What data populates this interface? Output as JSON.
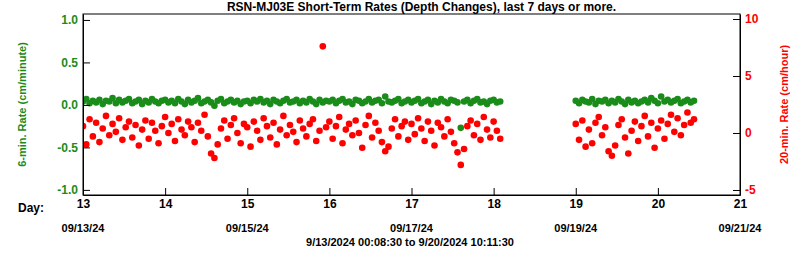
{
  "chart_data": {
    "type": "scatter",
    "title": "RSN-MJ03E Short-Term Rates (Depth Changes), last 7 days or more.",
    "ylabel": "6-min. Rate (cm/minute)",
    "y2label": "20-min. Rate (cm/hour)",
    "xlabel": "Day:",
    "footer": "9/13/2024 00:08:30 to  9/20/2024 10:11:30",
    "xlim": [
      13,
      21
    ],
    "xticks": [
      13,
      14,
      15,
      16,
      17,
      18,
      19,
      20,
      21
    ],
    "date_ticks": [
      {
        "value": 13,
        "label": "09/13/24"
      },
      {
        "value": 15,
        "label": "09/15/24"
      },
      {
        "value": 17,
        "label": "09/17/24"
      },
      {
        "value": 19,
        "label": "09/19/24"
      },
      {
        "value": 21,
        "label": "09/21/24"
      }
    ],
    "ylim": [
      -1.06,
      1.07
    ],
    "yticks": [
      {
        "value": -1,
        "label": "-1.0"
      },
      {
        "value": -0.5,
        "label": "-0.5"
      },
      {
        "value": 0,
        "label": "0.0"
      },
      {
        "value": 0.5,
        "label": "0.5"
      },
      {
        "value": 1,
        "label": "1.0"
      }
    ],
    "y2lim": [
      -5.44,
      10.44
    ],
    "y2ticks": [
      -5,
      0,
      5,
      10
    ],
    "x": [
      13,
      13.04,
      13.08,
      13.12,
      13.16,
      13.2,
      13.24,
      13.28,
      13.32,
      13.36,
      13.4,
      13.44,
      13.48,
      13.52,
      13.56,
      13.6,
      13.64,
      13.68,
      13.72,
      13.76,
      13.8,
      13.84,
      13.88,
      13.92,
      13.96,
      14,
      14.04,
      14.08,
      14.12,
      14.16,
      14.2,
      14.24,
      14.28,
      14.32,
      14.36,
      14.4,
      14.44,
      14.48,
      14.52,
      14.56,
      14.6,
      14.64,
      14.68,
      14.72,
      14.76,
      14.8,
      14.84,
      14.88,
      14.92,
      14.96,
      15,
      15.04,
      15.08,
      15.12,
      15.16,
      15.2,
      15.24,
      15.28,
      15.32,
      15.36,
      15.4,
      15.44,
      15.48,
      15.52,
      15.56,
      15.6,
      15.64,
      15.68,
      15.72,
      15.76,
      15.8,
      15.84,
      15.88,
      15.92,
      15.96,
      16,
      16.04,
      16.08,
      16.12,
      16.16,
      16.2,
      16.24,
      16.28,
      16.32,
      16.36,
      16.4,
      16.44,
      16.48,
      16.52,
      16.56,
      16.6,
      16.64,
      16.68,
      16.72,
      16.76,
      16.8,
      16.84,
      16.88,
      16.92,
      16.96,
      17,
      17.04,
      17.08,
      17.12,
      17.16,
      17.2,
      17.24,
      17.28,
      17.32,
      17.36,
      17.4,
      17.44,
      17.48,
      17.52,
      17.56,
      17.6,
      17.64,
      17.68,
      17.72,
      17.76,
      17.8,
      17.84,
      17.88,
      17.92,
      17.96,
      18,
      18.04,
      18.08,
      19,
      19.04,
      19.08,
      19.12,
      19.16,
      19.2,
      19.24,
      19.28,
      19.32,
      19.36,
      19.4,
      19.44,
      19.48,
      19.52,
      19.56,
      19.6,
      19.64,
      19.68,
      19.72,
      19.76,
      19.8,
      19.84,
      19.88,
      19.92,
      19.96,
      20,
      20.04,
      20.08,
      20.12,
      20.16,
      20.2,
      20.24,
      20.28,
      20.32,
      20.36,
      20.4,
      20.44
    ],
    "series": [
      {
        "color": "#1a8c1a",
        "marker": "circle",
        "values": [
          0.04,
          0.07,
          0.02,
          0.05,
          0.03,
          0.06,
          0.01,
          0.05,
          0.04,
          0.08,
          0.02,
          0.06,
          0.03,
          0.05,
          0.07,
          0.02,
          0.04,
          0.06,
          0.01,
          0.05,
          0.03,
          0.07,
          0.04,
          0.02,
          0.05,
          0.06,
          0.03,
          0.05,
          0.02,
          0.07,
          0.04,
          0.01,
          0.06,
          0.03,
          0.05,
          0.08,
          0.02,
          0.04,
          0.06,
          0.03,
          -0.01,
          0.05,
          0.07,
          0.02,
          0.04,
          0.06,
          0.03,
          0.05,
          0.01,
          0.04,
          0.05,
          0.02,
          0.06,
          0.04,
          0.07,
          0.03,
          0.05,
          0.01,
          0.06,
          0.04,
          0.02,
          0.05,
          0.07,
          0.03,
          0.04,
          0.06,
          0.02,
          0.05,
          0.03,
          0.07,
          0.04,
          0.01,
          0.06,
          0.03,
          0.05,
          0.04,
          0.06,
          0.02,
          0.05,
          0.07,
          0.03,
          0.04,
          0.01,
          0.06,
          0.05,
          0.02,
          0.04,
          0.07,
          0.03,
          0.05,
          0.06,
          0.02,
          0.1,
          0.04,
          0.03,
          0.05,
          0.07,
          0.02,
          0.04,
          0.06,
          0.03,
          0.05,
          0.07,
          0.02,
          0.04,
          0.06,
          0.01,
          0.05,
          0.03,
          0.07,
          0.04,
          0.02,
          0.06,
          0.05,
          0.03,
          -0.27,
          0.04,
          0.06,
          0.02,
          0.05,
          0.07,
          0.03,
          0.04,
          0.01,
          0.05,
          0.06,
          0.03,
          0.04,
          0.05,
          0.02,
          0.06,
          0.04,
          0.03,
          0.07,
          0.01,
          0.05,
          0.04,
          0.06,
          0.02,
          0.05,
          0.03,
          0.07,
          0.04,
          0.01,
          0.06,
          0.03,
          0.05,
          0.02,
          0.04,
          0.06,
          0.03,
          0.08,
          0.05,
          0.02,
          0.1,
          0.04,
          0.06,
          0.03,
          0.05,
          0.07,
          0.02,
          0.04,
          0.06,
          0.03,
          0.05
        ]
      },
      {
        "color": "#ff0000",
        "marker": "circle",
        "axis": "y2",
        "values": [
          0.6,
          -1.0,
          1.2,
          -0.3,
          0.9,
          -0.8,
          0.4,
          1.5,
          -0.2,
          0.8,
          0.1,
          1.3,
          -0.6,
          0.5,
          1.0,
          -0.4,
          0.7,
          -1.1,
          0.3,
          1.1,
          -0.5,
          0.9,
          0.2,
          -0.9,
          0.6,
          1.4,
          0.0,
          0.8,
          -0.7,
          1.2,
          0.3,
          -0.2,
          1.0,
          0.5,
          -0.8,
          0.9,
          0.2,
          1.6,
          -0.3,
          -1.8,
          -2.2,
          -1.0,
          0.4,
          1.1,
          -0.5,
          0.7,
          1.3,
          0.0,
          -0.9,
          0.8,
          0.5,
          -1.2,
          1.0,
          0.2,
          -0.6,
          1.3,
          0.6,
          -0.4,
          0.9,
          -1.0,
          0.3,
          1.5,
          -0.2,
          0.7,
          0.1,
          -0.8,
          1.1,
          0.4,
          -0.3,
          0.8,
          1.2,
          -0.7,
          0.2,
          7.6,
          0.5,
          1.0,
          -0.5,
          0.6,
          1.4,
          -0.9,
          0.3,
          0.8,
          -0.2,
          1.1,
          0.0,
          -1.3,
          0.7,
          1.5,
          -0.4,
          0.9,
          0.2,
          -0.8,
          -1.6,
          -1.2,
          0.4,
          1.2,
          -0.3,
          0.6,
          1.0,
          -0.6,
          0.8,
          -0.1,
          1.3,
          0.4,
          -0.7,
          1.0,
          0.2,
          -1.1,
          0.9,
          0.5,
          -0.3,
          1.2,
          0.1,
          -0.9,
          -1.7,
          -2.8,
          -1.4,
          0.6,
          1.1,
          -0.2,
          0.8,
          -0.6,
          1.4,
          0.3,
          -0.4,
          1.0,
          0.2,
          -0.5,
          0.8,
          -0.6,
          1.1,
          -1.2,
          0.3,
          -0.9,
          0.9,
          1.4,
          -0.2,
          0.5,
          -1.6,
          -2.0,
          -1.1,
          0.7,
          1.2,
          -0.4,
          -1.8,
          0.2,
          1.0,
          -0.7,
          0.6,
          1.5,
          -0.3,
          0.9,
          -1.3,
          0.4,
          1.1,
          -0.5,
          0.8,
          1.6,
          0.1,
          1.3,
          -0.2,
          0.7,
          1.8,
          0.9,
          1.2
        ]
      }
    ]
  }
}
